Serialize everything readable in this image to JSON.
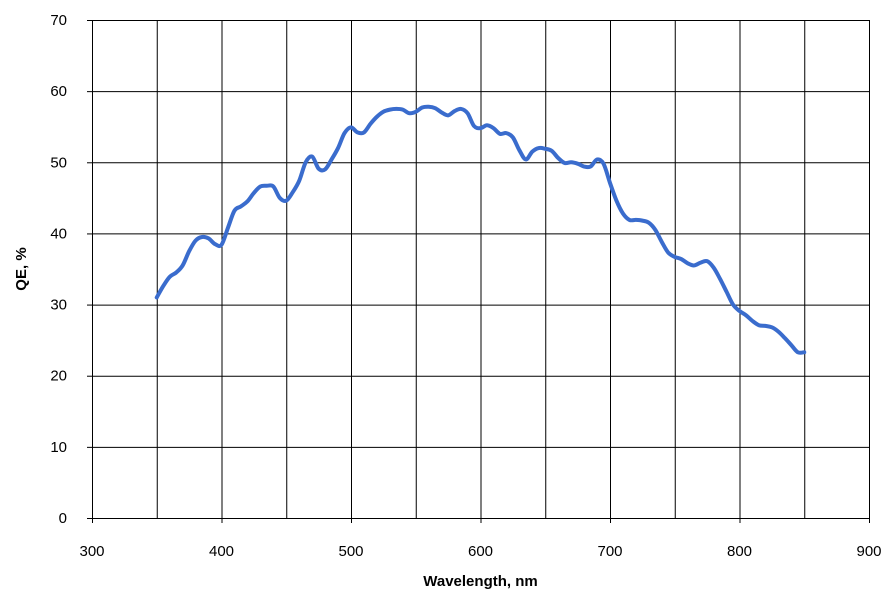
{
  "chart_data": {
    "type": "line",
    "xlabel": "Wavelength, nm",
    "ylabel": "QE, %",
    "xlim": [
      300,
      900
    ],
    "ylim": [
      0,
      70
    ],
    "xticks": [
      300,
      400,
      500,
      600,
      700,
      800,
      900
    ],
    "yticks": [
      0,
      10,
      20,
      30,
      40,
      50,
      60,
      70
    ],
    "grid": {
      "vertical_lines_at": [
        350,
        400,
        450,
        500,
        550,
        600,
        650,
        700,
        750,
        800,
        850,
        900
      ],
      "horizontal_lines_at": [
        10,
        20,
        30,
        40,
        50,
        60,
        70
      ]
    },
    "line_color": "#3a6ccd",
    "series": [
      {
        "x": [
          350,
          355,
          360,
          365,
          370,
          375,
          380,
          385,
          390,
          395,
          400,
          405,
          410,
          415,
          420,
          425,
          430,
          435,
          440,
          445,
          450,
          455,
          460,
          465,
          470,
          475,
          480,
          485,
          490,
          495,
          500,
          505,
          510,
          515,
          520,
          525,
          530,
          535,
          540,
          545,
          550,
          555,
          560,
          565,
          570,
          575,
          580,
          585,
          590,
          595,
          600,
          605,
          610,
          615,
          620,
          625,
          630,
          635,
          640,
          645,
          650,
          655,
          660,
          665,
          670,
          675,
          680,
          685,
          690,
          695,
          700,
          705,
          710,
          715,
          720,
          725,
          730,
          735,
          740,
          745,
          750,
          755,
          760,
          765,
          770,
          775,
          780,
          785,
          790,
          795,
          800,
          805,
          810,
          815,
          820,
          825,
          830,
          835,
          840,
          845,
          850
        ],
        "y": [
          31.0,
          32.6,
          33.9,
          34.5,
          35.5,
          37.5,
          39.0,
          39.5,
          39.3,
          38.5,
          38.4,
          40.8,
          43.2,
          43.8,
          44.5,
          45.7,
          46.6,
          46.7,
          46.6,
          45.0,
          44.6,
          45.8,
          47.4,
          50.0,
          50.8,
          49.1,
          49.0,
          50.4,
          52.0,
          54.1,
          54.9,
          54.2,
          54.2,
          55.4,
          56.4,
          57.1,
          57.4,
          57.5,
          57.4,
          56.9,
          57.1,
          57.7,
          57.8,
          57.6,
          57.0,
          56.6,
          57.2,
          57.5,
          56.9,
          55.1,
          54.8,
          55.2,
          54.8,
          54.0,
          54.1,
          53.5,
          51.7,
          50.4,
          51.5,
          52.0,
          51.9,
          51.6,
          50.6,
          49.9,
          50.0,
          49.8,
          49.4,
          49.4,
          50.4,
          49.8,
          47.1,
          44.6,
          42.8,
          41.9,
          41.9,
          41.8,
          41.5,
          40.5,
          38.8,
          37.3,
          36.7,
          36.4,
          35.8,
          35.5,
          35.9,
          36.1,
          35.2,
          33.6,
          31.8,
          30.0,
          29.1,
          28.5,
          27.7,
          27.1,
          27.0,
          26.8,
          26.2,
          25.3,
          24.3,
          23.3,
          23.3
        ]
      }
    ]
  }
}
